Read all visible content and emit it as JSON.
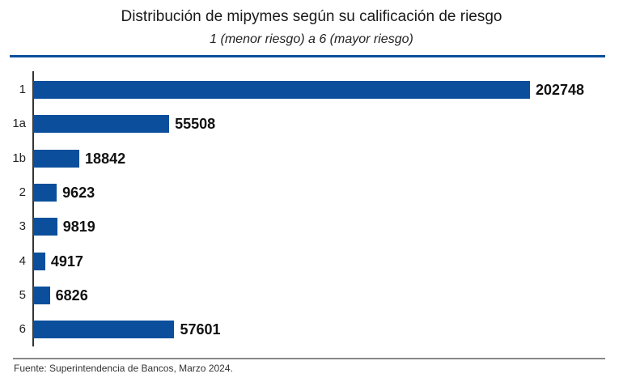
{
  "chart_data": {
    "type": "bar",
    "orientation": "horizontal",
    "title": "Distribución de mipymes según su calificación de riesgo",
    "subtitle": "1 (menor riesgo) a 6 (mayor riesgo)",
    "categories": [
      "1",
      "1a",
      "1b",
      "2",
      "3",
      "4",
      "5",
      "6"
    ],
    "values": [
      202748,
      55508,
      18842,
      9623,
      9819,
      4917,
      6826,
      57601
    ],
    "data_labels": [
      "202748",
      "55508",
      "18842",
      "9623",
      "9819",
      "4917",
      "6826",
      "57601"
    ],
    "xlim": [
      0,
      202748
    ],
    "grid": false,
    "bar_color": "#0b4f9c",
    "source": "Fuente: Superintendencia de Bancos, Marzo 2024."
  }
}
